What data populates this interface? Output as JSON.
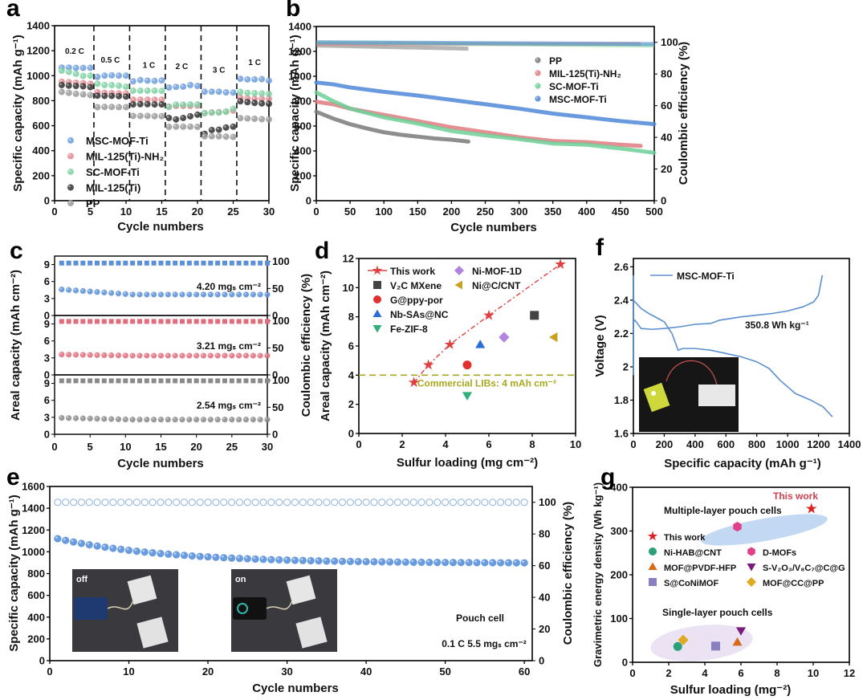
{
  "panels": {
    "a": "a",
    "b": "b",
    "c": "c",
    "d": "d",
    "e": "e",
    "f": "f",
    "g": "g"
  },
  "chart_data": [
    {
      "id": "a",
      "type": "scatter",
      "title": "",
      "xlabel": "Cycle numbers",
      "ylabel": "Specific capacity (mAh g⁻¹)",
      "xlim": [
        0,
        30
      ],
      "ylim": [
        0,
        1400
      ],
      "xticks": [
        0,
        5,
        10,
        15,
        20,
        25,
        30
      ],
      "yticks": [
        0,
        200,
        400,
        600,
        800,
        1000,
        1200,
        1400
      ],
      "rate_dividers": [
        5.5,
        10.5,
        15.5,
        20.5,
        25.5
      ],
      "rate_labels": [
        {
          "text": "0.2 C",
          "x": 2.8,
          "y": 1200
        },
        {
          "text": "0.5 C",
          "x": 7.8,
          "y": 1130
        },
        {
          "text": "1 C",
          "x": 13.2,
          "y": 1090
        },
        {
          "text": "2 C",
          "x": 17.8,
          "y": 1080
        },
        {
          "text": "3 C",
          "x": 23,
          "y": 1050
        },
        {
          "text": "1 C",
          "x": 28,
          "y": 1110
        }
      ],
      "legend": "bottom-left",
      "x": [
        1,
        2,
        3,
        4,
        5,
        6,
        7,
        8,
        9,
        10,
        11,
        12,
        13,
        14,
        15,
        16,
        17,
        18,
        19,
        20,
        21,
        22,
        23,
        24,
        25,
        26,
        27,
        28,
        29,
        30
      ],
      "series": [
        {
          "name": "MSC-MOF-Ti",
          "color": "#6f9fdc",
          "values": [
            1065,
            1065,
            1062,
            1062,
            1063,
            990,
            1000,
            1003,
            1000,
            1000,
            955,
            965,
            960,
            958,
            962,
            905,
            910,
            912,
            925,
            918,
            872,
            872,
            872,
            866,
            865,
            975,
            970,
            970,
            972,
            960
          ]
        },
        {
          "name": "MIL-125(Ti)-NH₂",
          "color": "#e08a92",
          "values": [
            952,
            948,
            943,
            940,
            935,
            868,
            862,
            860,
            858,
            858,
            808,
            808,
            808,
            808,
            808,
            752,
            758,
            758,
            758,
            760,
            700,
            705,
            708,
            712,
            720,
            825,
            818,
            815,
            815,
            815
          ]
        },
        {
          "name": "SC-MOF-Ti",
          "color": "#7fd1a3",
          "values": [
            1040,
            1030,
            1015,
            998,
            1000,
            935,
            925,
            925,
            920,
            912,
            880,
            880,
            880,
            880,
            878,
            750,
            768,
            768,
            770,
            770,
            700,
            705,
            705,
            712,
            735,
            870,
            862,
            860,
            858,
            855
          ]
        },
        {
          "name": "MIL-125(Ti)",
          "color": "#333333",
          "values": [
            925,
            920,
            918,
            915,
            908,
            840,
            838,
            838,
            836,
            833,
            770,
            772,
            772,
            770,
            770,
            662,
            650,
            662,
            675,
            688,
            535,
            565,
            568,
            585,
            592,
            795,
            788,
            782,
            778,
            775
          ]
        },
        {
          "name": "PP",
          "color": "#9a9a9a",
          "values": [
            870,
            862,
            855,
            850,
            845,
            748,
            750,
            750,
            748,
            748,
            678,
            678,
            678,
            676,
            676,
            590,
            592,
            592,
            592,
            590,
            515,
            515,
            515,
            512,
            510,
            660,
            658,
            655,
            652,
            650
          ]
        }
      ]
    },
    {
      "id": "b",
      "type": "line",
      "xlabel": "Cycle numbers",
      "ylabel": "Specific capacity (mAh g⁻¹)",
      "ylabel_right": "Coulombic efficiency (%)",
      "xlim": [
        0,
        500
      ],
      "ylim": [
        0,
        1400
      ],
      "ylim_right": [
        0,
        110
      ],
      "xticks": [
        0,
        50,
        100,
        150,
        200,
        250,
        300,
        350,
        400,
        450,
        500
      ],
      "yticks": [
        0,
        200,
        400,
        600,
        800,
        1000,
        1200,
        1400
      ],
      "yticks_right": [
        0,
        20,
        40,
        60,
        80,
        100
      ],
      "legend": "top-right",
      "series": [
        {
          "name": "PP",
          "color": "#7a7a7a",
          "x": [
            0,
            25,
            50,
            75,
            100,
            125,
            150,
            175,
            200,
            225
          ],
          "values": [
            715,
            660,
            615,
            580,
            550,
            530,
            515,
            500,
            490,
            475
          ],
          "ce_x": [
            0,
            225
          ],
          "ce": [
            98,
            96
          ]
        },
        {
          "name": "MIL-125(Ti)-NH₂",
          "color": "#e07a80",
          "x": [
            0,
            25,
            50,
            100,
            150,
            200,
            250,
            300,
            350,
            400,
            450,
            480
          ],
          "values": [
            795,
            775,
            740,
            690,
            640,
            590,
            550,
            510,
            480,
            470,
            450,
            440
          ],
          "ce_x": [
            0,
            480
          ],
          "ce": [
            99,
            99
          ]
        },
        {
          "name": "SC-MOF-Ti",
          "color": "#6dcf96",
          "x": [
            0,
            25,
            50,
            100,
            150,
            200,
            250,
            300,
            350,
            400,
            450,
            500
          ],
          "values": [
            870,
            800,
            740,
            670,
            620,
            560,
            525,
            495,
            460,
            450,
            420,
            385
          ],
          "ce_x": [
            0,
            500
          ],
          "ce": [
            100,
            98
          ]
        },
        {
          "name": "MSC-MOF-Ti",
          "color": "#4f88d8",
          "x": [
            0,
            25,
            50,
            100,
            150,
            200,
            250,
            300,
            350,
            400,
            450,
            500
          ],
          "values": [
            950,
            935,
            910,
            875,
            845,
            810,
            775,
            740,
            700,
            670,
            640,
            615
          ],
          "ce_x": [
            0,
            500
          ],
          "ce": [
            100,
            99
          ]
        }
      ]
    },
    {
      "id": "c",
      "type": "scatter",
      "xlabel": "Cycle numbers",
      "ylabel": "Areal capacity (mAh cm⁻²)",
      "ylabel_right": "Coulombic efficiency (%)",
      "xlim": [
        0,
        30
      ],
      "xticks": [
        0,
        5,
        10,
        15,
        20,
        25,
        30
      ],
      "subplots": [
        {
          "label": "4.20 mgₛ cm⁻²",
          "color": "#5b8fd6",
          "ylim": [
            0,
            10
          ],
          "yticks": [
            0,
            3,
            6,
            9
          ],
          "ce_ticks": [
            0,
            50,
            100
          ],
          "capacity": 4.6,
          "capacity_end": 3.7,
          "ce": 97
        },
        {
          "label": "3.21 mgₛ cm⁻²",
          "color": "#e06c7c",
          "ylim": [
            0,
            10
          ],
          "yticks": [
            0,
            3,
            6,
            9
          ],
          "ce_ticks": [
            0,
            50,
            100
          ],
          "capacity": 3.6,
          "capacity_end": 3.4,
          "ce": 99
        },
        {
          "label": "2.54 mgₛ cm⁻²",
          "color": "#8a8a8a",
          "ylim": [
            0,
            10
          ],
          "yticks": [
            0,
            3,
            6,
            9
          ],
          "ce_ticks": [
            0,
            50,
            100
          ],
          "capacity": 2.9,
          "capacity_end": 2.6,
          "ce": 99
        }
      ]
    },
    {
      "id": "d",
      "type": "scatter",
      "xlabel": "Sulfur loading (mg cm⁻²)",
      "ylabel": "Areal capacity (mAh cm⁻²)",
      "xlim": [
        0,
        10
      ],
      "ylim": [
        0,
        12
      ],
      "xticks": [
        0,
        2,
        4,
        6,
        8,
        10
      ],
      "yticks": [
        0,
        2,
        4,
        6,
        8,
        10,
        12
      ],
      "reference_line": {
        "y": 4,
        "label": "Commercial LIBs: 4 mAh cm⁻²",
        "color": "#a8a820"
      },
      "legend": "top-left",
      "series": [
        {
          "name": "This work",
          "marker": "star",
          "color": "#e04040",
          "x": [
            2.54,
            3.21,
            4.2,
            6.0,
            9.3
          ],
          "values": [
            3.5,
            4.7,
            6.1,
            8.1,
            11.6
          ]
        },
        {
          "name": "V₂C MXene",
          "marker": "square",
          "color": "#444444",
          "x": [
            8.1
          ],
          "values": [
            8.1
          ]
        },
        {
          "name": "G@ppy-por",
          "marker": "circle",
          "color": "#e03030",
          "x": [
            5.0
          ],
          "values": [
            4.7
          ]
        },
        {
          "name": "Nb-SAs@NC",
          "marker": "triangle-up",
          "color": "#2a6fd6",
          "x": [
            5.6
          ],
          "values": [
            6.1
          ]
        },
        {
          "name": "Fe-ZIF-8",
          "marker": "triangle-down",
          "color": "#2fb07a",
          "x": [
            5.0
          ],
          "values": [
            2.6
          ]
        },
        {
          "name": "Ni-MOF-1D",
          "marker": "diamond",
          "color": "#b084e0",
          "x": [
            6.7
          ],
          "values": [
            6.6
          ]
        },
        {
          "name": "Ni@C/CNT",
          "marker": "triangle-left",
          "color": "#c9a020",
          "x": [
            9.0
          ],
          "values": [
            6.6
          ]
        }
      ]
    },
    {
      "id": "e",
      "type": "scatter",
      "xlabel": "Cycle numbers",
      "ylabel": "Specific capacity (mAh g⁻¹)",
      "ylabel_right": "Coulombic efficiency (%)",
      "xlim": [
        0,
        61
      ],
      "ylim": [
        0,
        1600
      ],
      "ylim_right": [
        0,
        110
      ],
      "xticks": [
        0,
        10,
        20,
        30,
        40,
        50,
        60
      ],
      "yticks": [
        0,
        200,
        400,
        600,
        800,
        1000,
        1200,
        1400,
        1600
      ],
      "yticks_right": [
        0,
        20,
        40,
        60,
        80,
        100
      ],
      "annotations": [
        "Pouch cell",
        "0.1 C 5.5 mgₛ cm⁻²"
      ],
      "photo_labels": [
        "off",
        "on"
      ],
      "series": [
        {
          "name": "Capacity",
          "color": "#4f8ad8",
          "start": 1120,
          "end": 895
        },
        {
          "name": "Coulombic efficiency",
          "color": "#8ab0e0",
          "ce": 100
        }
      ]
    },
    {
      "id": "f",
      "type": "line",
      "xlabel": "Specific capacity (mAh g⁻¹)",
      "ylabel": "Voltage (V)",
      "xlim": [
        0,
        1400
      ],
      "ylim": [
        1.6,
        2.65
      ],
      "xticks": [
        0,
        200,
        400,
        600,
        800,
        1000,
        1200,
        1400
      ],
      "yticks": [
        1.6,
        1.8,
        2.0,
        2.2,
        2.4,
        2.6
      ],
      "annotation": "350.8 Wh kg⁻¹",
      "legend": "top-left",
      "series": [
        {
          "name": "MSC-MOF-Ti",
          "color": "#5b8fcf",
          "discharge_x": [
            0,
            50,
            100,
            200,
            250,
            290,
            320,
            400,
            500,
            600,
            700,
            800,
            880,
            950,
            1050,
            1150,
            1230,
            1290
          ],
          "discharge_y": [
            2.4,
            2.35,
            2.32,
            2.27,
            2.2,
            2.1,
            2.11,
            2.11,
            2.1,
            2.08,
            2.06,
            2.03,
            1.99,
            1.92,
            1.84,
            1.8,
            1.76,
            1.7
          ],
          "charge_x": [
            0,
            10,
            50,
            120,
            200,
            300,
            400,
            500,
            560,
            700,
            800,
            900,
            1000,
            1100,
            1170,
            1200,
            1225
          ],
          "charge_y": [
            2.27,
            2.28,
            2.23,
            2.225,
            2.23,
            2.24,
            2.255,
            2.26,
            2.28,
            2.3,
            2.31,
            2.32,
            2.335,
            2.36,
            2.39,
            2.43,
            2.55
          ]
        }
      ]
    },
    {
      "id": "g",
      "type": "scatter",
      "xlabel": "Sulfur loading (mg⁻²)",
      "ylabel": "Gravimetric energy density (Wh kg⁻¹)",
      "xlim": [
        0,
        12
      ],
      "ylim": [
        0,
        400
      ],
      "xticks": [
        0,
        2,
        4,
        6,
        8,
        10,
        12
      ],
      "yticks": [
        0,
        100,
        200,
        300,
        400
      ],
      "annotations": [
        "Multiple-layer pouch cells",
        "Single-layer pouch cells",
        "This work"
      ],
      "legend": "center-left",
      "series": [
        {
          "name": "This work",
          "marker": "star",
          "color": "#e02020",
          "x": [
            9.9
          ],
          "values": [
            351
          ]
        },
        {
          "name": "Ni-HAB@CNT",
          "marker": "circle",
          "color": "#2aa07a",
          "x": [
            2.5
          ],
          "values": [
            36
          ]
        },
        {
          "name": "MOF@PVDF-HFP",
          "marker": "triangle-up",
          "color": "#d8681a",
          "x": [
            5.8
          ],
          "values": [
            46
          ]
        },
        {
          "name": "S@CoNiMOF",
          "marker": "square",
          "color": "#8a80c0",
          "x": [
            4.6
          ],
          "values": [
            37
          ]
        },
        {
          "name": "D-MOFs",
          "marker": "hexagon",
          "color": "#e0408a",
          "x": [
            5.8
          ],
          "values": [
            310
          ]
        },
        {
          "name": "S-V₂O₃/V₈C₇@C@G",
          "marker": "triangle-down",
          "color": "#7a1a7a",
          "x": [
            6.0
          ],
          "values": [
            72
          ]
        },
        {
          "name": "MOF@CC@PP",
          "marker": "diamond",
          "color": "#e0aa20",
          "x": [
            2.8
          ],
          "values": [
            51
          ]
        }
      ]
    }
  ]
}
